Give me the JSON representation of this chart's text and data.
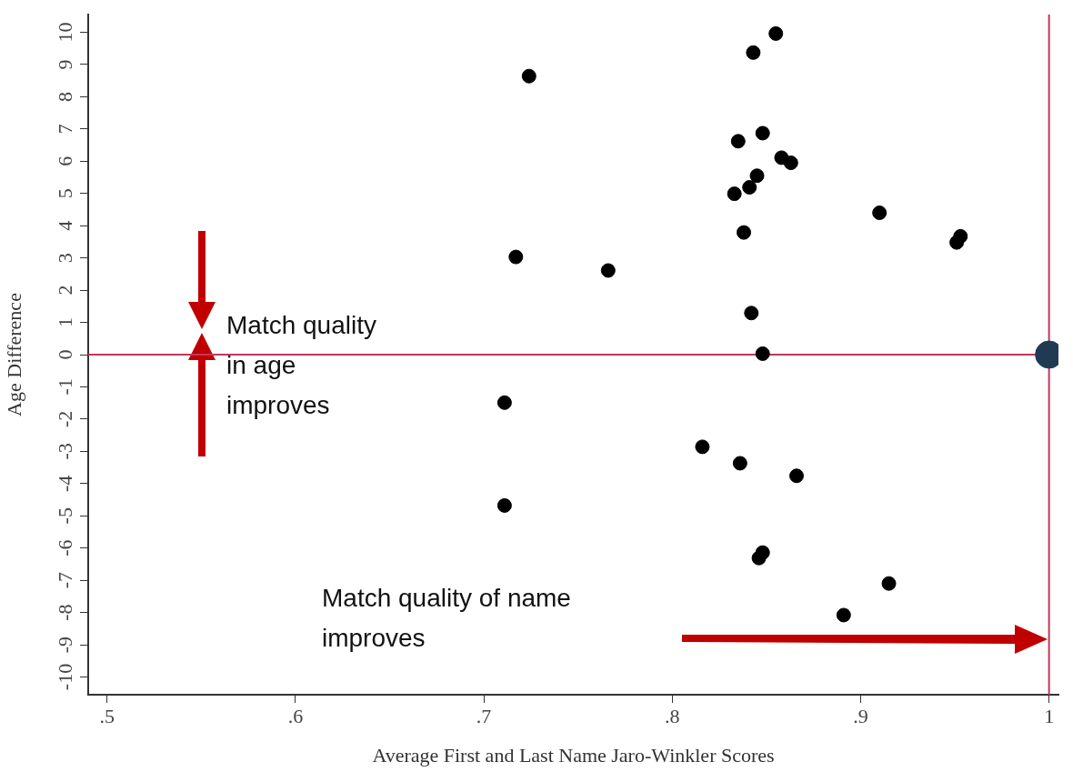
{
  "chart_data": {
    "type": "scatter",
    "xlabel": "Average First and Last Name Jaro-Winkler Scores",
    "ylabel": "Age Difference",
    "series": [
      {
        "color": "#000000",
        "x": [
          0.855,
          0.843,
          0.724,
          0.835,
          0.848,
          0.858,
          0.863,
          0.845,
          0.841,
          0.833,
          0.91,
          0.953,
          0.951,
          0.838,
          0.717,
          0.766,
          0.842,
          0.848,
          0.711,
          0.816,
          0.836,
          0.866,
          0.711,
          0.848,
          0.846,
          0.915,
          0.891
        ],
        "values": [
          9.96,
          9.37,
          8.64,
          6.62,
          6.87,
          6.11,
          5.95,
          5.55,
          5.19,
          4.99,
          4.4,
          3.67,
          3.48,
          3.79,
          3.03,
          2.61,
          1.29,
          0.03,
          -1.49,
          -2.86,
          -3.37,
          -3.76,
          -4.68,
          -6.14,
          -6.31,
          -7.1,
          -8.08
        ]
      },
      {
        "color": "#1f3a52",
        "x": [
          1
        ],
        "values": [
          0
        ]
      }
    ],
    "xlim": [
      0.49,
      1.005
    ],
    "ylim": [
      -10.55,
      10.55
    ],
    "xticks": [
      {
        "value": 0.5,
        "label": ".5"
      },
      {
        "value": 0.6,
        "label": ".6"
      },
      {
        "value": 0.7,
        "label": ".7"
      },
      {
        "value": 0.8,
        "label": ".8"
      },
      {
        "value": 0.9,
        "label": ".9"
      },
      {
        "value": 1,
        "label": "1"
      }
    ],
    "yticks": [
      -10,
      -9,
      -8,
      -7,
      -6,
      -5,
      -4,
      -3,
      -2,
      -1,
      0,
      1,
      2,
      3,
      4,
      5,
      6,
      7,
      8,
      9,
      10
    ],
    "ref_lines": [
      {
        "axis": "x",
        "value": 1,
        "color": "#c0395a"
      },
      {
        "axis": "y",
        "value": 0,
        "color": "#c0395a"
      }
    ],
    "annotations": [
      "Match quality in age improves",
      "Match quality of name improves"
    ],
    "marker": "circle",
    "grid": false,
    "legend": false
  }
}
